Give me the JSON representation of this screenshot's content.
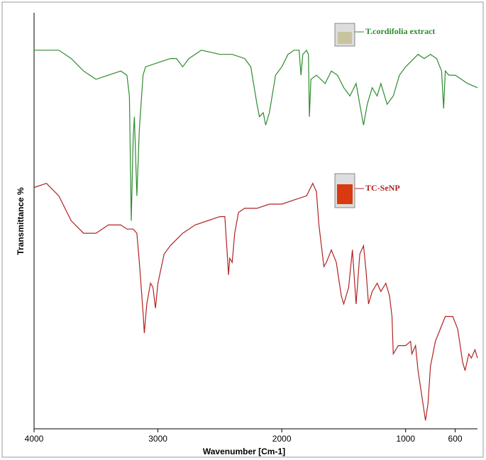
{
  "chart_data": {
    "type": "line",
    "x_label": "Wavenumber [Cm-1]",
    "y_label": "Transmittance %",
    "xlim": [
      4000,
      420
    ],
    "ylim": [
      0,
      100
    ],
    "xticks": [
      4000,
      3000,
      2000,
      1000,
      600
    ],
    "series": [
      {
        "name": "T.cordifolia extract",
        "color": "#2e8b2e",
        "x": [
          4000,
          3800,
          3700,
          3600,
          3500,
          3400,
          3300,
          3250,
          3230,
          3215,
          3200,
          3190,
          3170,
          3150,
          3120,
          3100,
          3000,
          2900,
          2850,
          2800,
          2750,
          2700,
          2650,
          2500,
          2400,
          2300,
          2250,
          2200,
          2180,
          2150,
          2130,
          2100,
          2050,
          2000,
          1950,
          1900,
          1860,
          1845,
          1830,
          1800,
          1785,
          1777,
          1765,
          1720,
          1650,
          1600,
          1550,
          1500,
          1450,
          1400,
          1370,
          1340,
          1310,
          1270,
          1230,
          1200,
          1150,
          1100,
          1050,
          1000,
          900,
          850,
          800,
          750,
          710,
          693,
          680,
          650,
          600,
          550,
          500,
          420
        ],
        "values": [
          91,
          91,
          89,
          86,
          84,
          85,
          86,
          85,
          80,
          50,
          70,
          75,
          56,
          72,
          85,
          87,
          88,
          89,
          89,
          87,
          89,
          90,
          91,
          90,
          90,
          89,
          87,
          78,
          75,
          76,
          73,
          76,
          85,
          87,
          90,
          91,
          91,
          85,
          90,
          91,
          90,
          75,
          84,
          85,
          83,
          86,
          85,
          82,
          80,
          83,
          78,
          73,
          78,
          82,
          80,
          83,
          78,
          80,
          85,
          87,
          90,
          89,
          90,
          89,
          86,
          77,
          86,
          85,
          85,
          84,
          83,
          82
        ]
      },
      {
        "name": "TC-SeNP",
        "color": "#b22222",
        "x": [
          4000,
          3900,
          3800,
          3700,
          3600,
          3500,
          3400,
          3300,
          3250,
          3200,
          3170,
          3150,
          3120,
          3110,
          3090,
          3060,
          3040,
          3020,
          3000,
          2950,
          2900,
          2800,
          2700,
          2600,
          2500,
          2460,
          2440,
          2430,
          2420,
          2400,
          2380,
          2350,
          2300,
          2200,
          2100,
          2000,
          1900,
          1800,
          1750,
          1720,
          1700,
          1680,
          1660,
          1640,
          1600,
          1560,
          1520,
          1500,
          1460,
          1430,
          1400,
          1370,
          1340,
          1320,
          1300,
          1270,
          1230,
          1200,
          1160,
          1130,
          1110,
          1100,
          1060,
          1000,
          960,
          950,
          920,
          900,
          880,
          860,
          840,
          820,
          800,
          760,
          720,
          680,
          650,
          620,
          580,
          540,
          520,
          490,
          470,
          440,
          420
        ],
        "values": [
          58,
          59,
          56,
          50,
          47,
          47,
          49,
          49,
          48,
          48,
          47,
          40,
          28,
          23,
          30,
          35,
          34,
          29,
          35,
          42,
          44,
          47,
          49,
          50,
          51,
          51,
          42,
          37,
          41,
          40,
          47,
          52,
          53,
          53,
          54,
          54,
          55,
          56,
          59,
          57,
          49,
          44,
          39,
          40,
          43,
          40,
          32,
          30,
          34,
          43,
          30,
          42,
          44,
          38,
          30,
          33,
          35,
          33,
          35,
          32,
          27,
          18,
          20,
          20,
          21,
          18,
          20,
          14,
          10,
          6,
          2,
          6,
          15,
          21,
          24,
          27,
          27,
          27,
          24,
          16,
          14,
          18,
          17,
          19,
          17
        ]
      }
    ]
  }
}
